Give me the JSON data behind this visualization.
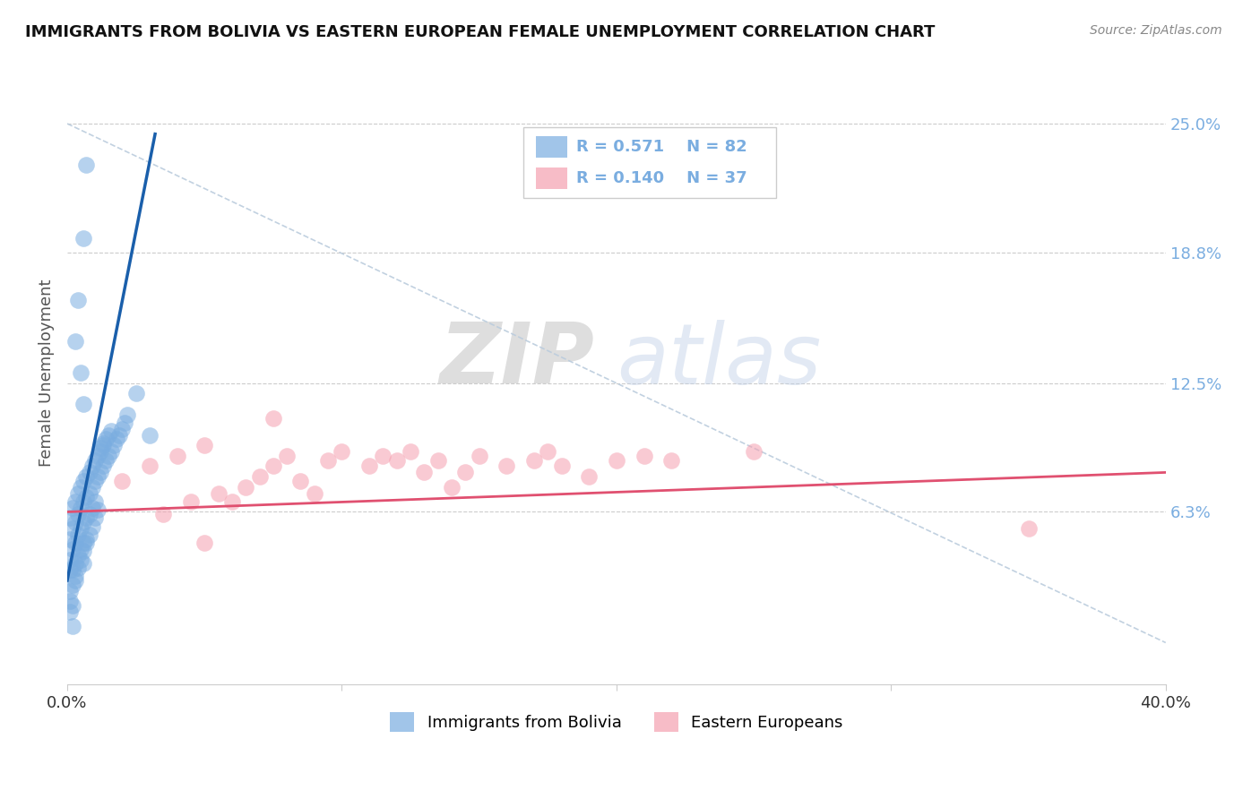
{
  "title": "IMMIGRANTS FROM BOLIVIA VS EASTERN EUROPEAN FEMALE UNEMPLOYMENT CORRELATION CHART",
  "source": "Source: ZipAtlas.com",
  "ylabel": "Female Unemployment",
  "xlim": [
    0.0,
    0.4
  ],
  "ylim": [
    -0.02,
    0.28
  ],
  "right_ytick_labels": [
    "25.0%",
    "18.8%",
    "12.5%",
    "6.3%"
  ],
  "right_ytick_values": [
    0.25,
    0.188,
    0.125,
    0.063
  ],
  "blue_color": "#7AADE0",
  "pink_color": "#F5A0B0",
  "blue_line_color": "#1A5FAB",
  "pink_line_color": "#E05070",
  "dashed_line_color": "#BBCCDD",
  "watermark_zip": "ZIP",
  "watermark_atlas": "atlas",
  "watermark_color_zip": "#BBCCDD",
  "watermark_color_atlas": "#BBCCDD",
  "blue_scatter_x": [
    0.001,
    0.001,
    0.001,
    0.002,
    0.002,
    0.002,
    0.002,
    0.003,
    0.003,
    0.003,
    0.003,
    0.003,
    0.004,
    0.004,
    0.004,
    0.004,
    0.005,
    0.005,
    0.005,
    0.005,
    0.006,
    0.006,
    0.006,
    0.006,
    0.006,
    0.007,
    0.007,
    0.007,
    0.007,
    0.008,
    0.008,
    0.008,
    0.009,
    0.009,
    0.009,
    0.01,
    0.01,
    0.01,
    0.011,
    0.011,
    0.012,
    0.012,
    0.013,
    0.013,
    0.014,
    0.014,
    0.015,
    0.015,
    0.016,
    0.016,
    0.017,
    0.018,
    0.019,
    0.02,
    0.021,
    0.022,
    0.001,
    0.001,
    0.001,
    0.001,
    0.002,
    0.002,
    0.002,
    0.003,
    0.004,
    0.005,
    0.006,
    0.007,
    0.008,
    0.009,
    0.01,
    0.011,
    0.003,
    0.004,
    0.005,
    0.006,
    0.025,
    0.03,
    0.012,
    0.013,
    0.007,
    0.006
  ],
  "blue_scatter_y": [
    0.05,
    0.06,
    0.04,
    0.055,
    0.065,
    0.045,
    0.035,
    0.058,
    0.068,
    0.048,
    0.038,
    0.03,
    0.062,
    0.072,
    0.052,
    0.042,
    0.065,
    0.075,
    0.055,
    0.045,
    0.068,
    0.078,
    0.058,
    0.048,
    0.038,
    0.07,
    0.08,
    0.06,
    0.05,
    0.072,
    0.082,
    0.062,
    0.075,
    0.085,
    0.065,
    0.078,
    0.088,
    0.068,
    0.08,
    0.09,
    0.082,
    0.092,
    0.085,
    0.095,
    0.088,
    0.098,
    0.09,
    0.1,
    0.092,
    0.102,
    0.095,
    0.098,
    0.1,
    0.103,
    0.106,
    0.11,
    0.025,
    0.035,
    0.02,
    0.015,
    0.028,
    0.018,
    0.008,
    0.032,
    0.036,
    0.04,
    0.044,
    0.048,
    0.052,
    0.056,
    0.06,
    0.064,
    0.145,
    0.165,
    0.13,
    0.115,
    0.12,
    0.1,
    0.094,
    0.096,
    0.23,
    0.195
  ],
  "pink_scatter_x": [
    0.02,
    0.03,
    0.035,
    0.04,
    0.045,
    0.05,
    0.055,
    0.06,
    0.065,
    0.07,
    0.075,
    0.08,
    0.085,
    0.09,
    0.095,
    0.1,
    0.11,
    0.115,
    0.12,
    0.125,
    0.13,
    0.135,
    0.14,
    0.145,
    0.15,
    0.16,
    0.17,
    0.175,
    0.18,
    0.19,
    0.2,
    0.21,
    0.22,
    0.25,
    0.35,
    0.05,
    0.075
  ],
  "pink_scatter_y": [
    0.078,
    0.085,
    0.062,
    0.09,
    0.068,
    0.095,
    0.072,
    0.068,
    0.075,
    0.08,
    0.085,
    0.09,
    0.078,
    0.072,
    0.088,
    0.092,
    0.085,
    0.09,
    0.088,
    0.092,
    0.082,
    0.088,
    0.075,
    0.082,
    0.09,
    0.085,
    0.088,
    0.092,
    0.085,
    0.08,
    0.088,
    0.09,
    0.088,
    0.092,
    0.055,
    0.048,
    0.108
  ],
  "blue_line_x": [
    0.0,
    0.032
  ],
  "blue_line_y": [
    0.03,
    0.245
  ],
  "pink_line_x": [
    0.0,
    0.4
  ],
  "pink_line_y": [
    0.063,
    0.082
  ],
  "dashed_line_x": [
    0.0,
    0.4
  ],
  "dashed_line_y": [
    0.25,
    0.0
  ]
}
